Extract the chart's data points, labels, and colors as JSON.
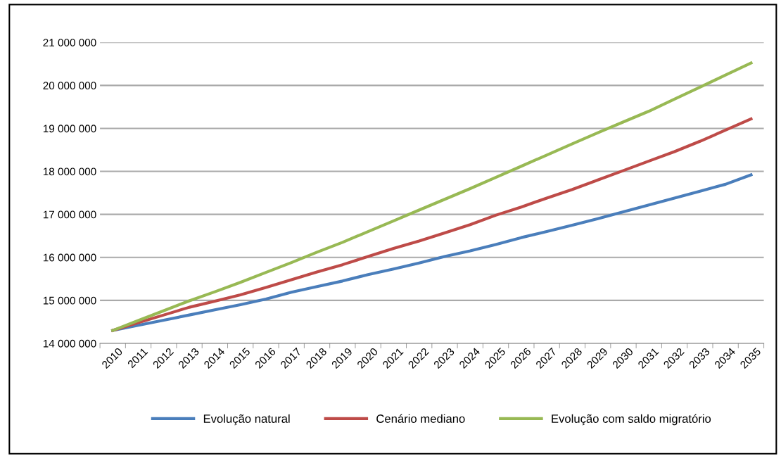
{
  "chart_data": {
    "type": "line",
    "categories": [
      "2010",
      "2011",
      "2012",
      "2013",
      "2014",
      "2015",
      "2016",
      "2017",
      "2018",
      "2019",
      "2020",
      "2021",
      "2022",
      "2023",
      "2024",
      "2025",
      "2026",
      "2027",
      "2028",
      "2029",
      "2030",
      "2031",
      "2032",
      "2033",
      "2034",
      "2035"
    ],
    "series": [
      {
        "name": "Evolução natural",
        "color": "#4a7ebb",
        "values": [
          14300000,
          14420000,
          14540000,
          14660000,
          14780000,
          14900000,
          15030000,
          15190000,
          15320000,
          15450000,
          15600000,
          15730000,
          15870000,
          16020000,
          16150000,
          16300000,
          16460000,
          16600000,
          16750000,
          16900000,
          17060000,
          17220000,
          17380000,
          17540000,
          17700000,
          17920000
        ]
      },
      {
        "name": "Cenário mediano",
        "color": "#be4b48",
        "values": [
          14300000,
          14480000,
          14660000,
          14840000,
          14980000,
          15130000,
          15300000,
          15480000,
          15660000,
          15830000,
          16020000,
          16210000,
          16380000,
          16570000,
          16760000,
          16980000,
          17170000,
          17380000,
          17580000,
          17800000,
          18020000,
          18240000,
          18460000,
          18700000,
          18960000,
          19220000
        ]
      },
      {
        "name": "Evolução com saldo migratório",
        "color": "#98b954",
        "values": [
          14300000,
          14530000,
          14760000,
          14990000,
          15200000,
          15420000,
          15650000,
          15880000,
          16120000,
          16350000,
          16600000,
          16850000,
          17100000,
          17350000,
          17600000,
          17860000,
          18120000,
          18380000,
          18640000,
          18900000,
          19150000,
          19400000,
          19680000,
          19960000,
          20240000,
          20520000
        ]
      }
    ],
    "ylim": [
      14000000,
      21000000
    ],
    "yticks": [
      {
        "value": 14000000,
        "label": "14 000 000"
      },
      {
        "value": 15000000,
        "label": "15 000 000"
      },
      {
        "value": 16000000,
        "label": "16 000 000"
      },
      {
        "value": 17000000,
        "label": "17 000 000"
      },
      {
        "value": 18000000,
        "label": "18 000 000"
      },
      {
        "value": 19000000,
        "label": "19 000 000"
      },
      {
        "value": 20000000,
        "label": "20 000 000"
      },
      {
        "value": 21000000,
        "label": "21 000 000"
      }
    ],
    "grid": "y",
    "legend": "bottom",
    "marker": "none",
    "line_style": "solid"
  }
}
